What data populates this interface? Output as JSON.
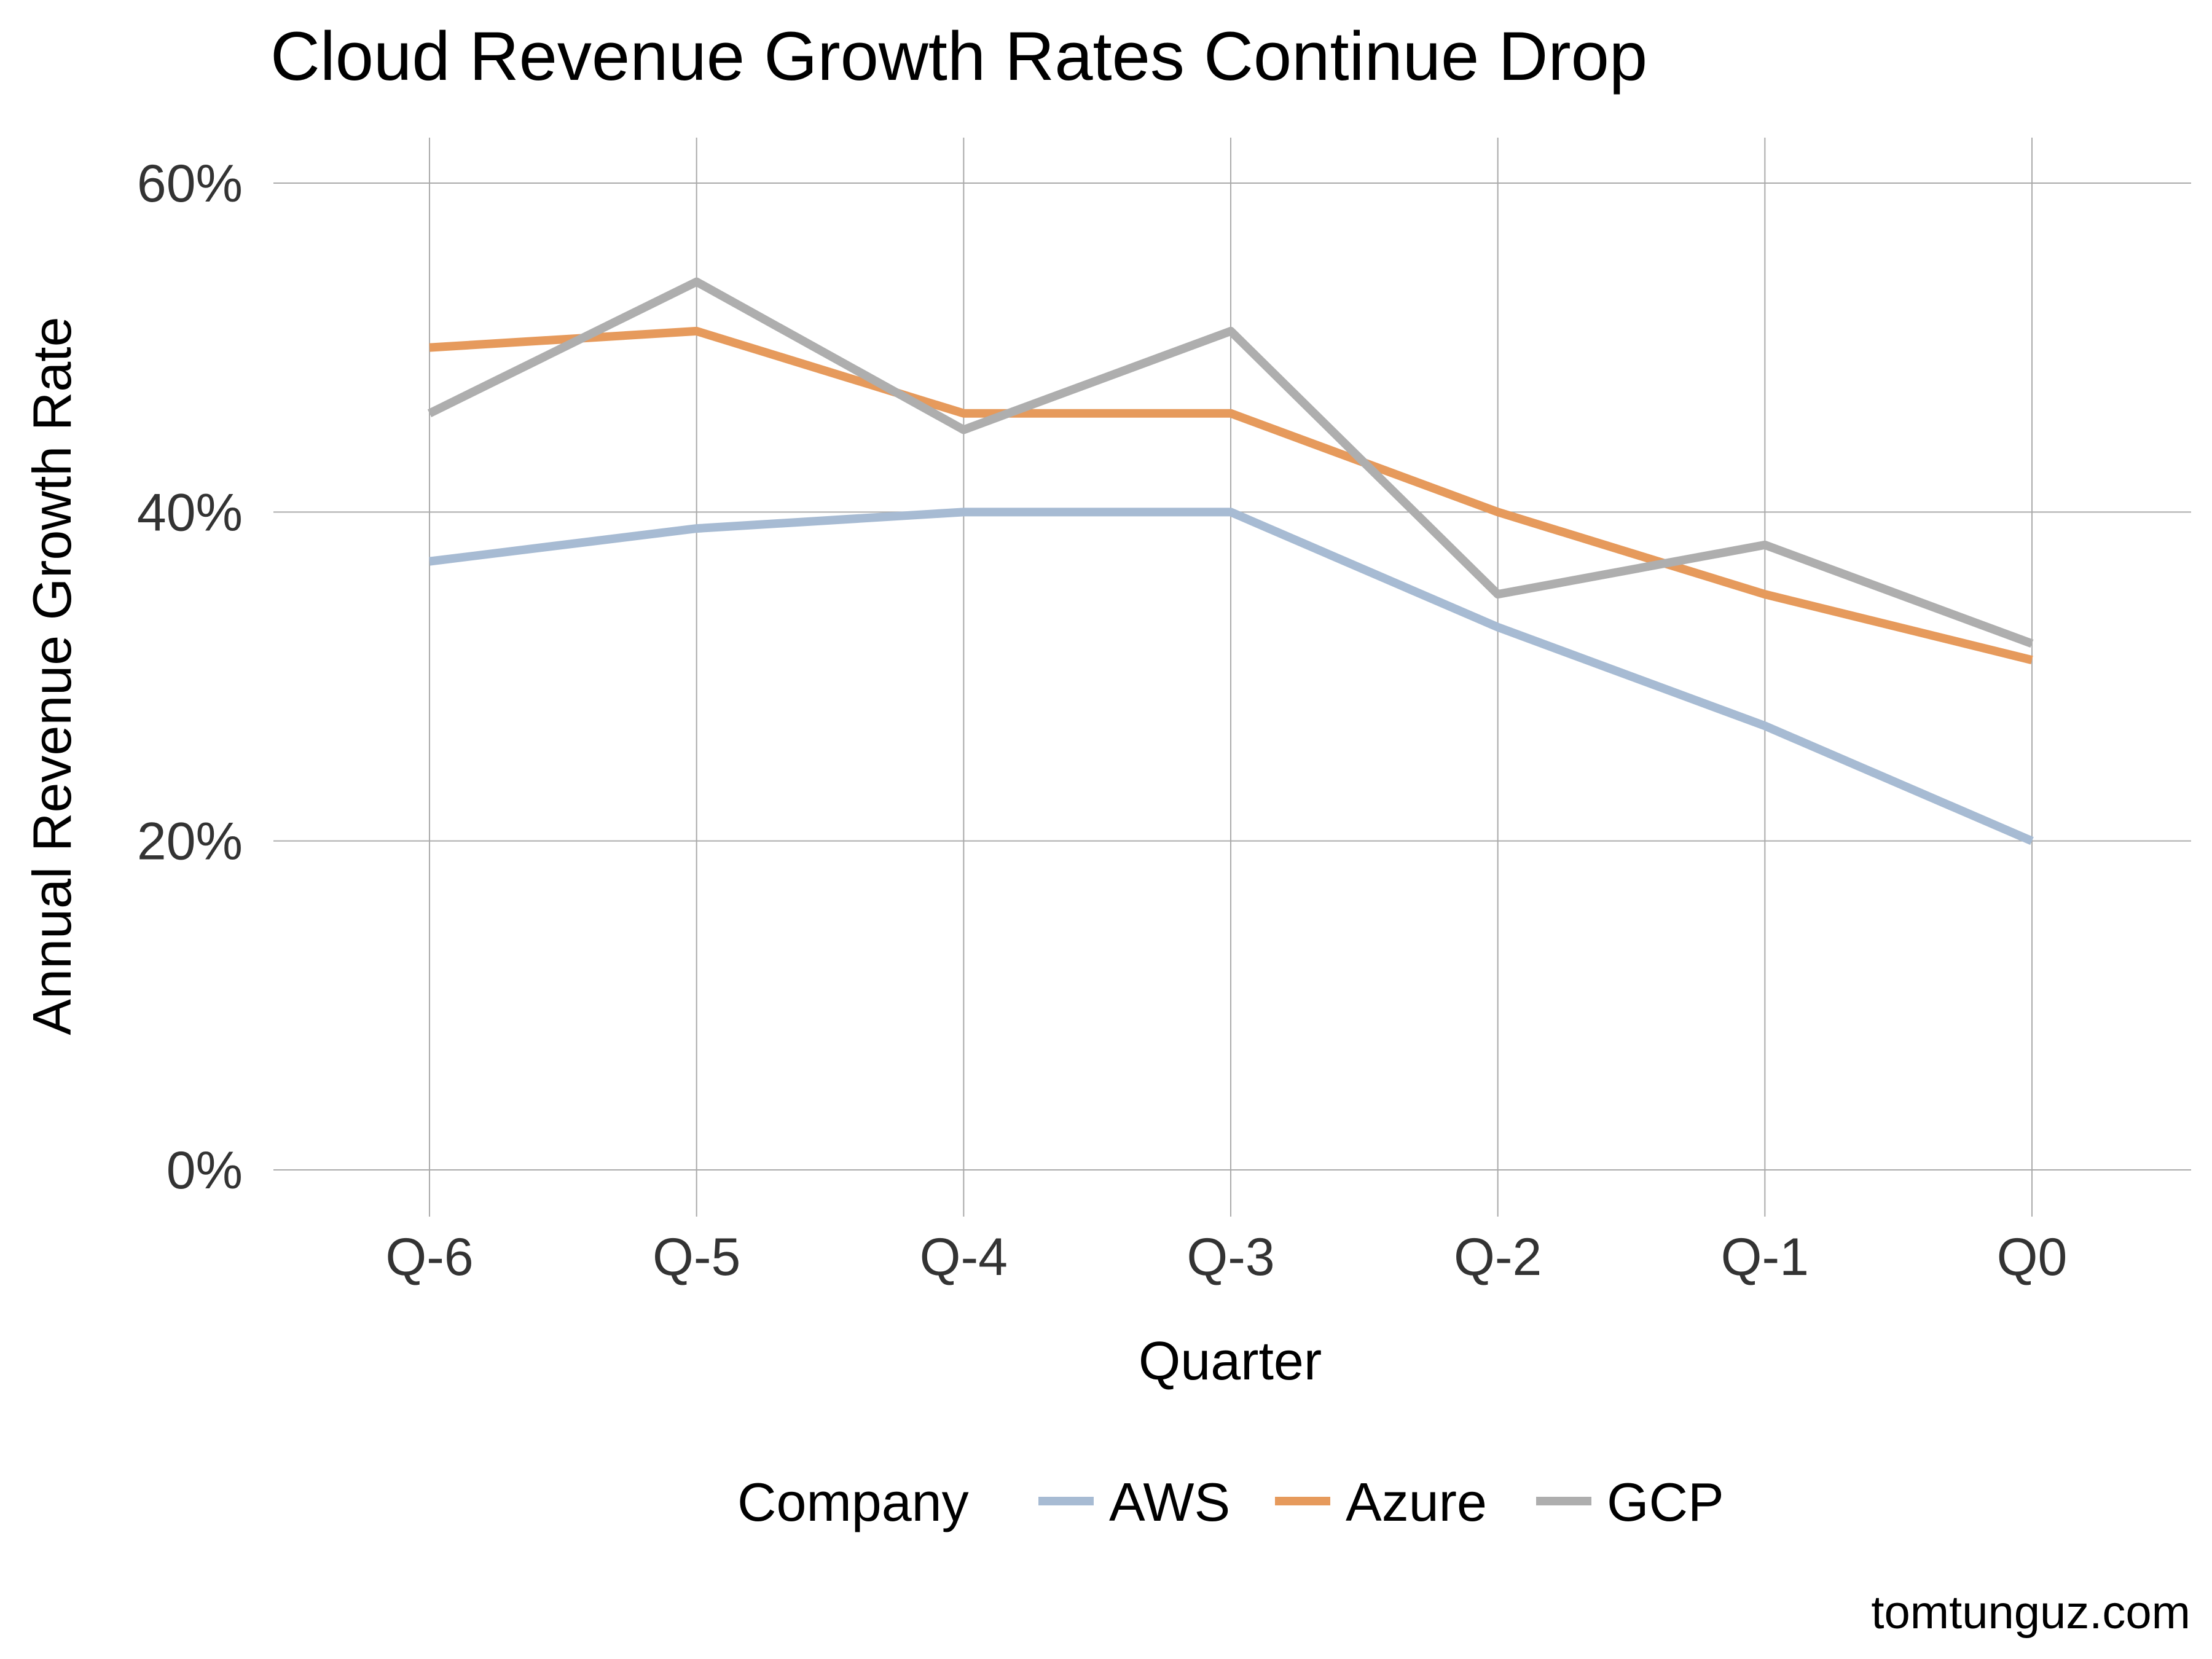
{
  "chart_data": {
    "type": "line",
    "title": "Cloud Revenue Growth Rates Continue Drop",
    "xlabel": "Quarter",
    "ylabel": "Annual Revenue Growth Rate",
    "categories": [
      "Q-6",
      "Q-5",
      "Q-4",
      "Q-3",
      "Q-2",
      "Q-1",
      "Q0"
    ],
    "ylim": [
      0,
      60
    ],
    "yticks": [
      0,
      20,
      40,
      60
    ],
    "ytick_labels": [
      "0%",
      "20%",
      "40%",
      "60%"
    ],
    "grid": true,
    "legend": {
      "title": "Company",
      "placement": "bottom"
    },
    "series": [
      {
        "name": "AWS",
        "color": "#a7bbd3",
        "values": [
          37,
          39,
          40,
          40,
          33,
          27,
          20
        ]
      },
      {
        "name": "Azure",
        "color": "#e69a5c",
        "values": [
          50,
          51,
          46,
          46,
          40,
          35,
          31
        ]
      },
      {
        "name": "GCP",
        "color": "#aeaeae",
        "values": [
          46,
          54,
          45,
          51,
          35,
          38,
          32
        ]
      }
    ],
    "caption": "tomtunguz.com"
  }
}
